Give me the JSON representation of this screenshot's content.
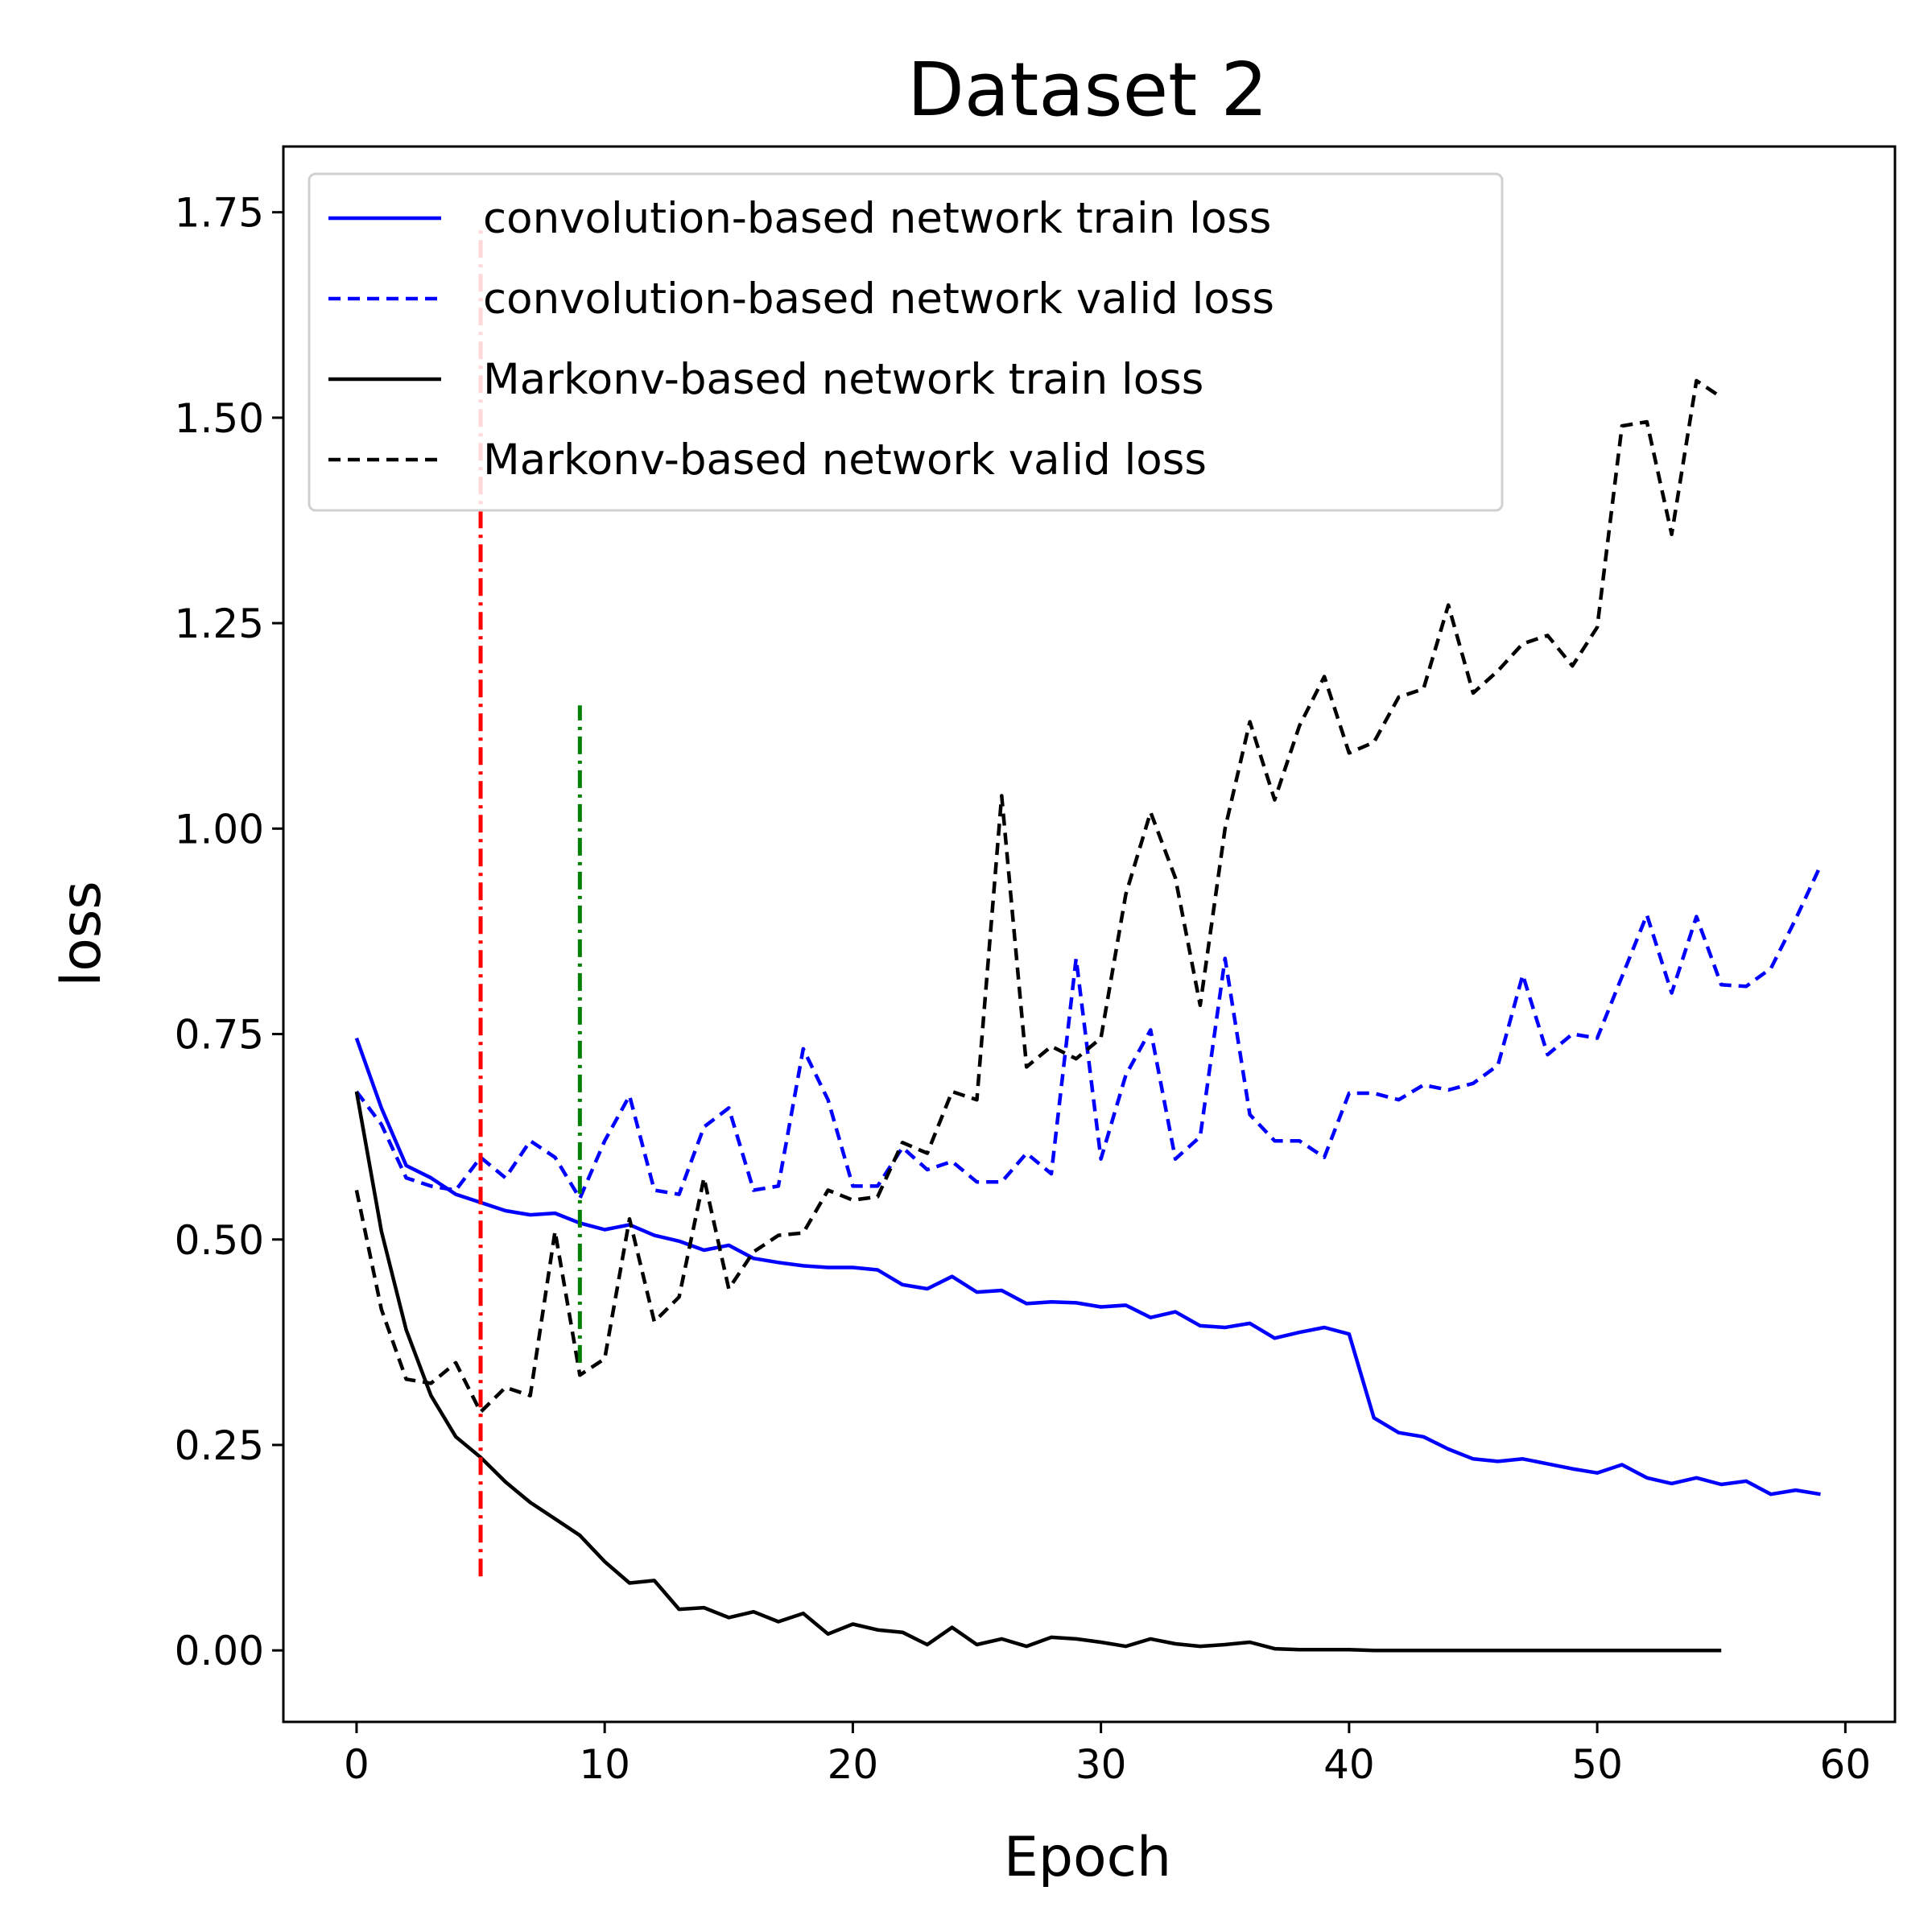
{
  "chart_data": {
    "type": "line",
    "title": "Dataset 2",
    "xlabel": "Epoch",
    "ylabel": "loss",
    "xlim": [
      -2.95,
      62
    ],
    "ylim": [
      -0.087,
      1.83
    ],
    "xticks": [
      0,
      10,
      20,
      30,
      40,
      50,
      60
    ],
    "xtick_labels": [
      "0",
      "10",
      "20",
      "30",
      "40",
      "50",
      "60"
    ],
    "yticks": [
      0.0,
      0.25,
      0.5,
      0.75,
      1.0,
      1.25,
      1.5,
      1.75
    ],
    "ytick_labels": [
      "0.00",
      "0.25",
      "0.50",
      "0.75",
      "1.00",
      "1.25",
      "1.50",
      "1.75"
    ],
    "grid": false,
    "legend_position": "upper-left",
    "series": [
      {
        "name": "convolution-based network train loss",
        "color": "#0000ff",
        "style": "solid",
        "x": [
          0,
          1,
          2,
          3,
          4,
          5,
          6,
          7,
          8,
          9,
          10,
          11,
          12,
          13,
          14,
          15,
          16,
          17,
          18,
          19,
          20,
          21,
          22,
          23,
          24,
          25,
          26,
          27,
          28,
          29,
          30,
          31,
          32,
          33,
          34,
          35,
          36,
          37,
          38,
          39,
          40,
          41,
          42,
          43,
          44,
          45,
          46,
          47,
          48,
          49,
          50,
          51,
          52,
          53,
          54,
          55,
          56,
          57,
          58,
          59
        ],
        "values": [
          0.745,
          0.66,
          0.59,
          0.575,
          0.555,
          0.545,
          0.535,
          0.53,
          0.532,
          0.52,
          0.512,
          0.518,
          0.505,
          0.498,
          0.487,
          0.493,
          0.477,
          0.472,
          0.468,
          0.466,
          0.466,
          0.463,
          0.445,
          0.44,
          0.455,
          0.436,
          0.438,
          0.422,
          0.424,
          0.423,
          0.418,
          0.42,
          0.405,
          0.412,
          0.395,
          0.393,
          0.398,
          0.38,
          0.387,
          0.393,
          0.385,
          0.283,
          0.265,
          0.26,
          0.245,
          0.233,
          0.23,
          0.233,
          0.227,
          0.221,
          0.216,
          0.226,
          0.21,
          0.203,
          0.21,
          0.202,
          0.206,
          0.19,
          0.195,
          0.19
        ]
      },
      {
        "name": "convolution-based network valid loss",
        "color": "#0000ff",
        "style": "dashed",
        "x": [
          0,
          1,
          2,
          3,
          4,
          5,
          6,
          7,
          8,
          9,
          10,
          11,
          12,
          13,
          14,
          15,
          16,
          17,
          18,
          19,
          20,
          21,
          22,
          23,
          24,
          25,
          26,
          27,
          28,
          29,
          30,
          31,
          32,
          33,
          34,
          35,
          36,
          37,
          38,
          39,
          40,
          41,
          42,
          43,
          44,
          45,
          46,
          47,
          48,
          49,
          50,
          51,
          52,
          53,
          54,
          55,
          56,
          57,
          58,
          59
        ],
        "values": [
          0.68,
          0.64,
          0.575,
          0.565,
          0.56,
          0.6,
          0.575,
          0.62,
          0.6,
          0.55,
          0.62,
          0.675,
          0.56,
          0.555,
          0.637,
          0.66,
          0.56,
          0.565,
          0.732,
          0.67,
          0.565,
          0.565,
          0.612,
          0.585,
          0.595,
          0.57,
          0.57,
          0.605,
          0.58,
          0.842,
          0.598,
          0.7,
          0.755,
          0.598,
          0.625,
          0.842,
          0.652,
          0.62,
          0.62,
          0.6,
          0.678,
          0.678,
          0.67,
          0.688,
          0.682,
          0.69,
          0.712,
          0.822,
          0.725,
          0.75,
          0.745,
          0.82,
          0.895,
          0.8,
          0.893,
          0.81,
          0.808,
          0.83,
          0.89,
          0.955
        ]
      },
      {
        "name": "Markonv-based network train loss",
        "color": "#000000",
        "style": "solid",
        "x": [
          0,
          1,
          2,
          3,
          4,
          5,
          6,
          7,
          8,
          9,
          10,
          11,
          12,
          13,
          14,
          15,
          16,
          17,
          18,
          19,
          20,
          21,
          22,
          23,
          24,
          25,
          26,
          27,
          28,
          29,
          30,
          31,
          32,
          33,
          34,
          35,
          36,
          37,
          38,
          39,
          40,
          41,
          42,
          43,
          44,
          45,
          46,
          47,
          48,
          49,
          50,
          51,
          52,
          53,
          54,
          55
        ],
        "values": [
          0.68,
          0.51,
          0.39,
          0.31,
          0.26,
          0.235,
          0.205,
          0.18,
          0.16,
          0.14,
          0.108,
          0.082,
          0.085,
          0.05,
          0.052,
          0.04,
          0.047,
          0.035,
          0.045,
          0.02,
          0.032,
          0.025,
          0.022,
          0.007,
          0.028,
          0.007,
          0.014,
          0.005,
          0.016,
          0.014,
          0.01,
          0.005,
          0.014,
          0.008,
          0.005,
          0.007,
          0.01,
          0.002,
          0.001,
          0.001,
          0.001,
          0.0,
          0.0,
          0.0,
          0.0,
          0.0,
          0.0,
          0.0,
          0.0,
          0.0,
          0.0,
          0.0,
          0.0,
          0.0,
          0.0,
          0.0
        ]
      },
      {
        "name": "Markonv-based network valid loss",
        "color": "#000000",
        "style": "dashed",
        "x": [
          0,
          1,
          2,
          3,
          4,
          5,
          6,
          7,
          8,
          9,
          10,
          11,
          12,
          13,
          14,
          15,
          16,
          17,
          18,
          19,
          20,
          21,
          22,
          23,
          24,
          25,
          26,
          27,
          28,
          29,
          30,
          31,
          32,
          33,
          34,
          35,
          36,
          37,
          38,
          39,
          40,
          41,
          42,
          43,
          44,
          45,
          46,
          47,
          48,
          49,
          50,
          51,
          52,
          53,
          54,
          55
        ],
        "values": [
          0.56,
          0.415,
          0.33,
          0.325,
          0.35,
          0.29,
          0.32,
          0.31,
          0.51,
          0.335,
          0.355,
          0.525,
          0.4,
          0.43,
          0.575,
          0.44,
          0.485,
          0.505,
          0.508,
          0.56,
          0.548,
          0.552,
          0.618,
          0.605,
          0.68,
          0.67,
          1.04,
          0.71,
          0.735,
          0.72,
          0.745,
          0.92,
          1.02,
          0.94,
          0.785,
          1.0,
          1.13,
          1.035,
          1.125,
          1.185,
          1.092,
          1.105,
          1.16,
          1.17,
          1.272,
          1.165,
          1.192,
          1.225,
          1.235,
          1.198,
          1.245,
          1.49,
          1.495,
          1.358,
          1.545,
          1.525
        ]
      }
    ],
    "annotations": [
      {
        "type": "vline",
        "x": 5,
        "ymin": 0.09,
        "ymax": 1.73,
        "color": "#ff0000",
        "style": "dashdot"
      },
      {
        "type": "vline",
        "x": 9,
        "ymin": 0.35,
        "ymax": 1.15,
        "color": "#008000",
        "style": "dashdot"
      }
    ]
  }
}
